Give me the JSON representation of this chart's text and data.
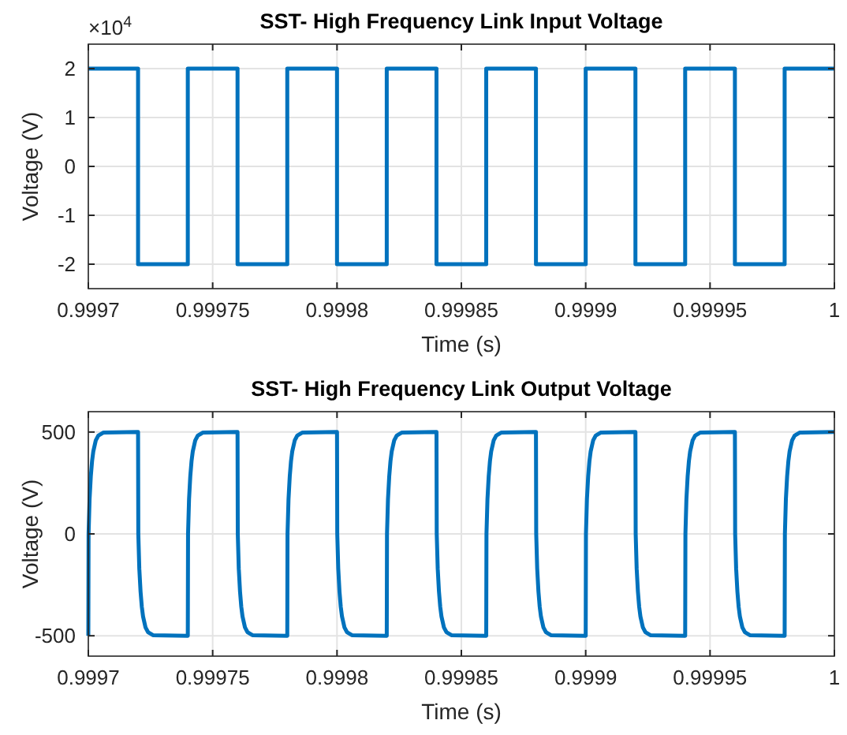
{
  "chart_data": [
    {
      "type": "line",
      "title": "SST- High Frequency Link Input Voltage",
      "xlabel": "Time (s)",
      "ylabel": "Voltage (V)",
      "annotations": [
        "×10$^{4}$"
      ],
      "grid": true,
      "line_style": "solid",
      "marker": "none",
      "xlim": [
        0.9997,
        1
      ],
      "xticks": [
        0.9997,
        0.99975,
        0.9998,
        0.99985,
        0.9999,
        0.99995,
        1
      ],
      "ylim": [
        -2.5,
        2.5
      ],
      "yticks": [
        -2,
        -1,
        0,
        1,
        2
      ],
      "series": [
        {
          "color": "#0072bd",
          "x": [
            0.9997,
            0.99972,
            0.99972,
            0.99974,
            0.99974,
            0.99976,
            0.99976,
            0.99978,
            0.99978,
            0.9998,
            0.9998,
            0.99982,
            0.99982,
            0.99984,
            0.99984,
            0.99986,
            0.99986,
            0.99988,
            0.99988,
            0.9999,
            0.9999,
            0.99992,
            0.99992,
            0.99994,
            0.99994,
            0.99996,
            0.99996,
            0.99998,
            0.99998,
            1
          ],
          "values": [
            2,
            2,
            -2,
            -2,
            2,
            2,
            -2,
            -2,
            2,
            2,
            -2,
            -2,
            2,
            2,
            -2,
            -2,
            2,
            2,
            -2,
            -2,
            2,
            2,
            -2,
            -2,
            2,
            2,
            -2,
            -2,
            2,
            2
          ]
        }
      ]
    },
    {
      "type": "line",
      "title": "SST- High Frequency Link Output Voltage",
      "xlabel": "Time (s)",
      "ylabel": "Voltage (V)",
      "grid": true,
      "line_style": "solid",
      "marker": "none",
      "xlim": [
        0.9997,
        1
      ],
      "xticks": [
        0.9997,
        0.99975,
        0.9998,
        0.99985,
        0.9999,
        0.99995,
        1
      ],
      "ylim": [
        -600,
        600
      ],
      "yticks": [
        -500,
        0,
        500
      ],
      "series": [
        {
          "color": "#0072bd",
          "x": [
            0.9997,
            0.9997001,
            0.9997005,
            0.999701,
            0.9997015,
            0.999702,
            0.999703,
            0.999704,
            0.999706,
            0.99972,
            0.9997201,
            0.9997205,
            0.999721,
            0.9997215,
            0.999722,
            0.999723,
            0.999724,
            0.999726,
            0.99974,
            0.9997401,
            0.9997405,
            0.999741,
            0.9997415,
            0.999742,
            0.999743,
            0.999744,
            0.999746,
            0.99976,
            0.9997601,
            0.9997605,
            0.999761,
            0.9997615,
            0.999762,
            0.999763,
            0.999764,
            0.999766,
            0.99978,
            0.9997801,
            0.9997805,
            0.999781,
            0.9997815,
            0.999782,
            0.999783,
            0.999784,
            0.999786,
            0.9998,
            0.9998001,
            0.9998005,
            0.999801,
            0.9998015,
            0.999802,
            0.999803,
            0.999804,
            0.999806,
            0.99982,
            0.9998201,
            0.9998205,
            0.999821,
            0.9998215,
            0.999822,
            0.999823,
            0.999824,
            0.999826,
            0.99984,
            0.9998401,
            0.9998405,
            0.999841,
            0.9998415,
            0.999842,
            0.999843,
            0.999844,
            0.999846,
            0.99986,
            0.9998601,
            0.9998605,
            0.999861,
            0.9998615,
            0.999862,
            0.999863,
            0.999864,
            0.999866,
            0.99988,
            0.9998801,
            0.9998805,
            0.999881,
            0.9998815,
            0.999882,
            0.999883,
            0.999884,
            0.999886,
            0.9999,
            0.9999001,
            0.9999005,
            0.999901,
            0.9999015,
            0.999902,
            0.999903,
            0.999904,
            0.999906,
            0.99992,
            0.9999201,
            0.9999205,
            0.999921,
            0.9999215,
            0.999922,
            0.999923,
            0.999924,
            0.999926,
            0.99994,
            0.9999401,
            0.9999405,
            0.999941,
            0.9999415,
            0.999942,
            0.999943,
            0.999944,
            0.999946,
            0.99996,
            0.9999601,
            0.9999605,
            0.999961,
            0.9999615,
            0.999962,
            0.999963,
            0.999964,
            0.999966,
            0.99998,
            0.9999801,
            0.9999805,
            0.999981,
            0.9999815,
            0.999982,
            0.999983,
            0.999984,
            0.999986,
            1
          ],
          "values": [
            -500,
            0,
            171,
            283,
            357,
            405,
            459,
            482,
            497,
            500,
            0,
            -171,
            -283,
            -357,
            -405,
            -459,
            -482,
            -497,
            -500,
            0,
            171,
            283,
            357,
            405,
            459,
            482,
            497,
            500,
            0,
            -171,
            -283,
            -357,
            -405,
            -459,
            -482,
            -497,
            -500,
            0,
            171,
            283,
            357,
            405,
            459,
            482,
            497,
            500,
            0,
            -171,
            -283,
            -357,
            -405,
            -459,
            -482,
            -497,
            -500,
            0,
            171,
            283,
            357,
            405,
            459,
            482,
            497,
            500,
            0,
            -171,
            -283,
            -357,
            -405,
            -459,
            -482,
            -497,
            -500,
            0,
            171,
            283,
            357,
            405,
            459,
            482,
            497,
            500,
            0,
            -171,
            -283,
            -357,
            -405,
            -459,
            -482,
            -497,
            -500,
            0,
            171,
            283,
            357,
            405,
            459,
            482,
            497,
            500,
            0,
            -171,
            -283,
            -357,
            -405,
            -459,
            -482,
            -497,
            -500,
            0,
            171,
            283,
            357,
            405,
            459,
            482,
            497,
            500,
            0,
            -171,
            -283,
            -357,
            -405,
            -459,
            -482,
            -497,
            -500,
            0,
            171,
            283,
            357,
            405,
            459,
            482,
            497,
            500
          ]
        }
      ]
    }
  ]
}
